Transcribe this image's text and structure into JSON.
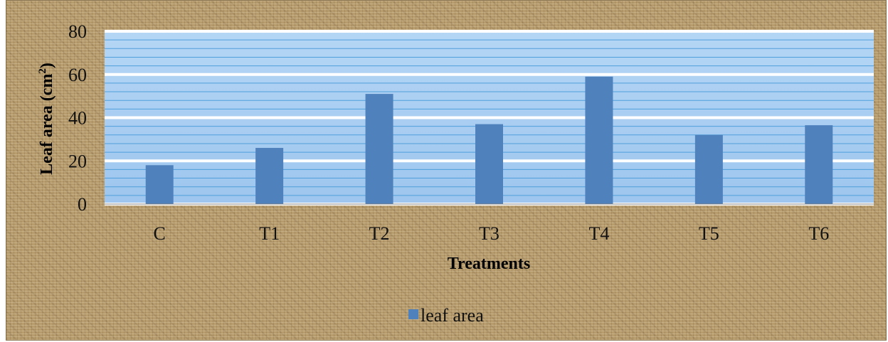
{
  "chart_data": {
    "type": "bar",
    "categories": [
      "C",
      "T1",
      "T2",
      "T3",
      "T4",
      "T5",
      "T6"
    ],
    "series": [
      {
        "name": "leaf area",
        "values": [
          18,
          26,
          51,
          37,
          59,
          32,
          36.5
        ]
      }
    ],
    "xlabel": "Treatments",
    "ylabel_main": "Leaf area (cm",
    "ylabel_sup": "2",
    "ylabel_end": ")",
    "ylim": [
      0,
      80
    ],
    "yticks": [
      "0",
      "20",
      "40",
      "60",
      "80"
    ],
    "grid": true,
    "legend_position": "bottom",
    "colors": {
      "bar": "#4f81bd",
      "plot_bg": "#a9cdf0",
      "grid_major": "#ffffff",
      "grid_minor": "#4f9fdc"
    }
  }
}
